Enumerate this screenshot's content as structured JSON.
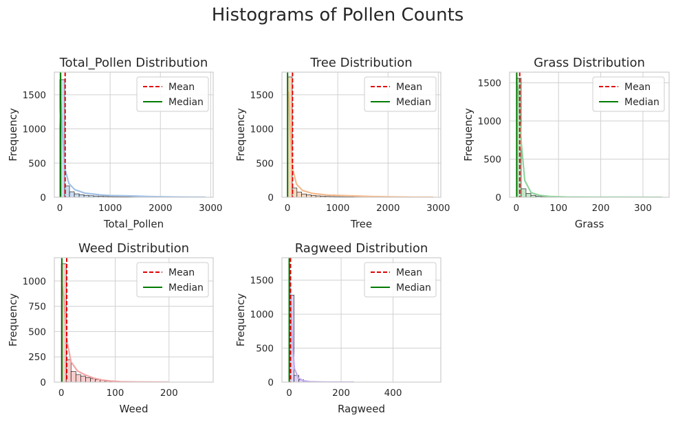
{
  "figure": {
    "title": "Histograms of Pollen Counts"
  },
  "legend": {
    "mean_label": "Mean",
    "median_label": "Median"
  },
  "colors": {
    "mean": "#e00000",
    "median": "#007a00"
  },
  "chart_data": [
    {
      "type": "bar",
      "title": "Total_Pollen Distribution",
      "xlabel": "Total_Pollen",
      "ylabel": "Frequency",
      "xlim": [
        -110,
        3050
      ],
      "ylim": [
        0,
        1830
      ],
      "xticks": [
        0,
        1000,
        2000,
        3000
      ],
      "yticks": [
        0,
        500,
        1000,
        1500
      ],
      "bin_edges": [
        0,
        96,
        192,
        288,
        384,
        480,
        576,
        672,
        768,
        864,
        960,
        1056,
        1152,
        1248,
        1344,
        1440,
        1536,
        1632,
        1728,
        1824,
        1920,
        2016,
        2112,
        2208,
        2304,
        2400,
        2496,
        2592,
        2688,
        2784,
        2880
      ],
      "counts": [
        1720,
        165,
        80,
        50,
        38,
        28,
        22,
        18,
        15,
        12,
        10,
        9,
        8,
        7,
        6,
        5,
        5,
        4,
        4,
        3,
        3,
        3,
        2,
        2,
        2,
        1,
        1,
        1,
        1,
        1
      ],
      "mean": 105,
      "median": 15,
      "color": "#a1c0e6",
      "kde": [
        [
          0,
          1050
        ],
        [
          20,
          1400
        ],
        [
          48,
          1000
        ],
        [
          100,
          420
        ],
        [
          180,
          200
        ],
        [
          300,
          110
        ],
        [
          500,
          60
        ],
        [
          800,
          35
        ],
        [
          1000,
          25
        ],
        [
          1300,
          22
        ],
        [
          1500,
          18
        ],
        [
          1800,
          10
        ],
        [
          2200,
          5
        ],
        [
          2600,
          2
        ],
        [
          2900,
          1
        ]
      ]
    },
    {
      "type": "bar",
      "title": "Tree Distribution",
      "xlabel": "Tree",
      "ylabel": "Frequency",
      "xlim": [
        -110,
        3050
      ],
      "ylim": [
        0,
        1830
      ],
      "xticks": [
        0,
        1000,
        2000,
        3000
      ],
      "yticks": [
        0,
        500,
        1000,
        1500
      ],
      "bin_edges": [
        0,
        94,
        188,
        282,
        376,
        470,
        564,
        658,
        752,
        846,
        940,
        1034,
        1128,
        1222,
        1316,
        1410,
        1504,
        1598,
        1692,
        1786,
        1880,
        1974,
        2068,
        2162,
        2256,
        2350,
        2444,
        2538,
        2632,
        2726,
        2820
      ],
      "counts": [
        1760,
        135,
        75,
        48,
        35,
        26,
        20,
        16,
        13,
        11,
        9,
        8,
        7,
        6,
        5,
        5,
        4,
        4,
        3,
        3,
        3,
        2,
        2,
        2,
        1,
        1,
        1,
        1,
        1,
        1
      ],
      "mean": 100,
      "median": 2,
      "color": "#f5b98c",
      "kde": [
        [
          0,
          1500
        ],
        [
          20,
          1550
        ],
        [
          48,
          1050
        ],
        [
          100,
          420
        ],
        [
          180,
          190
        ],
        [
          300,
          100
        ],
        [
          500,
          55
        ],
        [
          800,
          32
        ],
        [
          1100,
          25
        ],
        [
          1400,
          18
        ],
        [
          1700,
          10
        ],
        [
          2100,
          5
        ],
        [
          2500,
          2
        ],
        [
          2900,
          1
        ]
      ]
    },
    {
      "type": "bar",
      "title": "Grass Distribution",
      "xlabel": "Grass",
      "ylabel": "Frequency",
      "xlim": [
        -16,
        362
      ],
      "ylim": [
        0,
        1640
      ],
      "xticks": [
        0,
        100,
        200,
        300
      ],
      "yticks": [
        0,
        500,
        1000,
        1500
      ],
      "bin_edges": [
        0,
        11.5,
        23,
        34.5,
        46,
        57.5,
        69,
        80.5,
        92,
        103.5,
        115,
        126.5,
        138,
        149.5,
        161,
        172.5,
        184,
        195.5,
        207,
        218.5,
        230,
        241.5,
        253,
        264.5,
        276,
        287.5,
        299,
        310.5,
        322,
        333.5,
        345
      ],
      "counts": [
        1560,
        110,
        50,
        25,
        15,
        10,
        7,
        5,
        4,
        3,
        3,
        2,
        2,
        2,
        1,
        1,
        1,
        1,
        1,
        1,
        0,
        0,
        1,
        0,
        0,
        0,
        0,
        0,
        0,
        0
      ],
      "mean": 8,
      "median": 1,
      "color": "#8fd49b",
      "kde": [
        [
          0,
          1500
        ],
        [
          5,
          1400
        ],
        [
          12,
          700
        ],
        [
          20,
          220
        ],
        [
          35,
          60
        ],
        [
          55,
          25
        ],
        [
          80,
          10
        ],
        [
          120,
          4
        ],
        [
          180,
          2
        ],
        [
          250,
          1
        ],
        [
          345,
          0
        ]
      ]
    },
    {
      "type": "bar",
      "title": "Weed Distribution",
      "xlabel": "Weed",
      "ylabel": "Frequency",
      "xlim": [
        -13,
        282
      ],
      "ylim": [
        0,
        1230
      ],
      "xticks": [
        0,
        100,
        200
      ],
      "yticks": [
        0,
        250,
        500,
        750,
        1000
      ],
      "bin_edges": [
        0,
        9,
        18,
        27,
        36,
        45,
        54,
        63,
        72,
        81,
        90,
        99,
        108,
        117,
        126,
        135,
        144,
        153,
        162,
        171,
        180,
        189,
        198,
        207,
        216,
        225,
        234,
        243,
        252,
        261,
        270
      ],
      "counts": [
        1170,
        220,
        105,
        75,
        60,
        45,
        35,
        25,
        18,
        10,
        6,
        4,
        3,
        2,
        2,
        1,
        1,
        1,
        1,
        0,
        0,
        0,
        0,
        0,
        0,
        0,
        0,
        0,
        0,
        0
      ],
      "mean": 10,
      "median": 1,
      "color": "#f4a3a3",
      "kde": [
        [
          0,
          1000
        ],
        [
          5,
          820
        ],
        [
          10,
          420
        ],
        [
          18,
          200
        ],
        [
          30,
          110
        ],
        [
          45,
          70
        ],
        [
          60,
          40
        ],
        [
          75,
          22
        ],
        [
          90,
          12
        ],
        [
          110,
          5
        ],
        [
          140,
          2
        ],
        [
          200,
          0
        ]
      ]
    },
    {
      "type": "bar",
      "title": "Ragweed Distribution",
      "xlabel": "Ragweed",
      "ylabel": "Frequency",
      "xlim": [
        -28,
        584
      ],
      "ylim": [
        0,
        1830
      ],
      "xticks": [
        0,
        200,
        400
      ],
      "yticks": [
        0,
        500,
        1000,
        1500
      ],
      "bin_edges": [
        0,
        18.6,
        37.2,
        55.8,
        74.4,
        93,
        111.6,
        130.2,
        148.8,
        167.4,
        186,
        204.6,
        223.2,
        241.8,
        260.4,
        279,
        297.6,
        316.2,
        334.8,
        353.4,
        372,
        390.6,
        409.2,
        427.8,
        446.4,
        465,
        483.6,
        502.2,
        520.8,
        539.4,
        558
      ],
      "counts": [
        1280,
        100,
        35,
        15,
        8,
        4,
        3,
        2,
        1,
        1,
        1,
        0,
        0,
        0,
        0,
        0,
        0,
        0,
        0,
        0,
        0,
        0,
        0,
        0,
        0,
        0,
        0,
        0,
        0,
        1
      ],
      "mean": 5,
      "median": 0,
      "color": "#c0acec",
      "kde": [
        [
          0,
          1750
        ],
        [
          5,
          1300
        ],
        [
          12,
          600
        ],
        [
          20,
          200
        ],
        [
          35,
          60
        ],
        [
          55,
          20
        ],
        [
          80,
          6
        ],
        [
          130,
          2
        ],
        [
          250,
          0
        ]
      ]
    }
  ]
}
